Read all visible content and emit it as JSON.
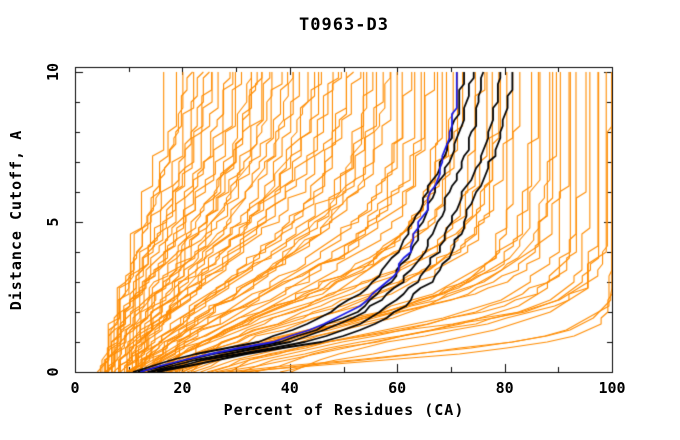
{
  "page": {
    "background": "#ffffff"
  },
  "chart_data": {
    "type": "line",
    "title": "T0963-D3",
    "xlabel": "Percent of Residues (CA)",
    "ylabel": "Distance Cutoff, A",
    "xlim": [
      0,
      100
    ],
    "ylim": [
      0,
      10
    ],
    "grid": false,
    "legend": "none",
    "x_major_ticks": [
      0,
      20,
      40,
      60,
      80,
      100
    ],
    "x_minor_ticks": [
      10,
      30,
      50,
      70,
      90
    ],
    "y_major_ticks": [
      0,
      5,
      10
    ],
    "y_minor_ticks": [
      1,
      2,
      3,
      4,
      6,
      7,
      8,
      9
    ],
    "x_tick_labels": [
      "0",
      "20",
      "40",
      "60",
      "80",
      "100"
    ],
    "y_tick_labels": [
      "0",
      "5",
      "10"
    ],
    "colors": {
      "ensemble": "#ff8c00",
      "highlight": "#000000",
      "selected": "#1a1ae6",
      "frame": "#000000"
    },
    "cutoff_grid": [
      0,
      0.5,
      1,
      1.5,
      2,
      2.5,
      3,
      3.5,
      4,
      5,
      6,
      7,
      8,
      9,
      10
    ],
    "series": {
      "selected_model": {
        "color_key": "selected",
        "percent_at_cutoff": [
          12,
          22,
          37,
          45,
          51,
          55,
          58,
          60.5,
          62,
          64.5,
          66.5,
          68.5,
          70,
          70.8,
          71.3
        ]
      },
      "highlighted_models": [
        {
          "color_key": "highlight",
          "percent_at_cutoff": [
            11,
            20,
            34,
            42,
            48,
            52,
            55.5,
            58,
            60,
            63,
            65.5,
            68,
            70.2,
            71.5,
            72.4
          ]
        },
        {
          "color_key": "highlight",
          "percent_at_cutoff": [
            12,
            23,
            38,
            46,
            52,
            55.5,
            58.5,
            60.5,
            62.5,
            65,
            67,
            69.5,
            71.5,
            73,
            73.9
          ]
        },
        {
          "color_key": "highlight",
          "percent_at_cutoff": [
            13,
            25,
            40,
            48,
            54,
            57.5,
            60.5,
            63,
            65,
            67.5,
            70,
            72,
            74,
            75.2,
            76.1
          ]
        },
        {
          "color_key": "highlight",
          "percent_at_cutoff": [
            14,
            27,
            43,
            52,
            57,
            60.5,
            63.5,
            65.5,
            67.5,
            70,
            72.5,
            75,
            77,
            78.3,
            79.1
          ]
        },
        {
          "color_key": "highlight",
          "percent_at_cutoff": [
            15,
            29,
            46,
            55,
            60,
            63,
            66,
            68,
            70,
            72.5,
            75,
            77.5,
            79.3,
            80.5,
            81.4
          ]
        }
      ],
      "ensemble_models": {
        "color_key": "ensemble",
        "count": 84,
        "percent_at_cutoff0": [
          5,
          28,
          8,
          13,
          22,
          6,
          10,
          15,
          31,
          7,
          12,
          18,
          5,
          16,
          9,
          35,
          8,
          14,
          19,
          6,
          11,
          17,
          40,
          7,
          12,
          24,
          5,
          11,
          16,
          9,
          14,
          27,
          6,
          10,
          20,
          33,
          8,
          12,
          15,
          6,
          21,
          10,
          13,
          29,
          7,
          11,
          17,
          5,
          14,
          9,
          26,
          7,
          11,
          19,
          8,
          13,
          37,
          6,
          10,
          16,
          30,
          8,
          12,
          20,
          5,
          11,
          17,
          9,
          13,
          28,
          6,
          10,
          16,
          23,
          7,
          12,
          15,
          10,
          18,
          11,
          14,
          25,
          9,
          17
        ],
        "percent_at_cutoff10": [
          17,
          100,
          34,
          62,
          88,
          25,
          45,
          71,
          95,
          30,
          55,
          80,
          20,
          68,
          42,
          97,
          36,
          58,
          85,
          27,
          49,
          74,
          99,
          32,
          60,
          90,
          22,
          52,
          78,
          38,
          65,
          93,
          28,
          47,
          82,
          100,
          35,
          57,
          70,
          24,
          88,
          44,
          63,
          96,
          31,
          54,
          76,
          19,
          67,
          41,
          92,
          29,
          50,
          84,
          37,
          61,
          98,
          26,
          46,
          72,
          100,
          33,
          59,
          86,
          21,
          53,
          79,
          40,
          64,
          94,
          23,
          48,
          75,
          89,
          34,
          56,
          69,
          43,
          81,
          51,
          66,
          91,
          39,
          77
        ]
      }
    }
  }
}
